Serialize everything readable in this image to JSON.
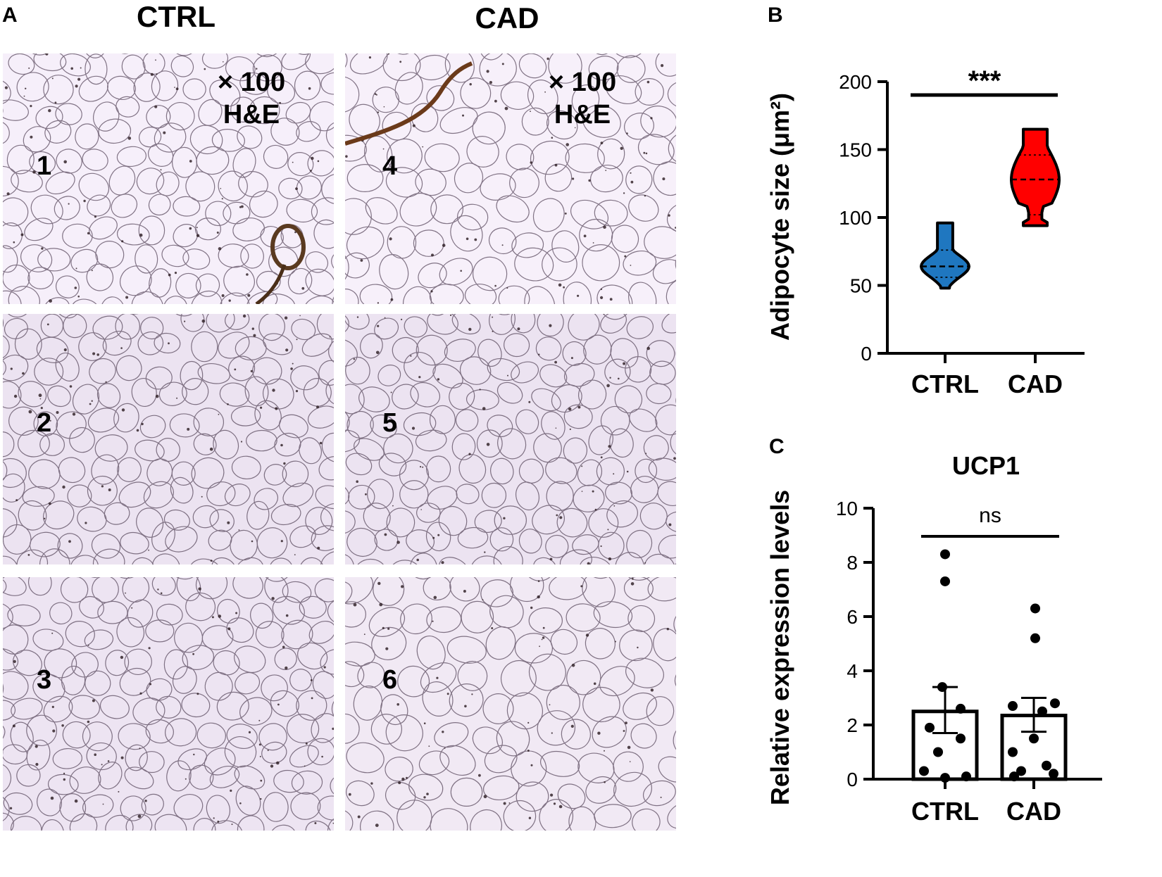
{
  "panel_a": {
    "letter": "A",
    "columns": [
      "CTRL",
      "CAD"
    ],
    "magnification": "× 100",
    "stain": "H&E",
    "images": [
      {
        "number": "1",
        "group": "CTRL",
        "tint": "#f6effa"
      },
      {
        "number": "2",
        "group": "CTRL",
        "tint": "#ece3f1"
      },
      {
        "number": "3",
        "group": "CTRL",
        "tint": "#ede4f2"
      },
      {
        "number": "4",
        "group": "CAD",
        "tint": "#f7f0fa"
      },
      {
        "number": "5",
        "group": "CAD",
        "tint": "#ece3f1"
      },
      {
        "number": "6",
        "group": "CAD",
        "tint": "#f1e9f4"
      }
    ]
  },
  "panel_b": {
    "letter": "B"
  },
  "panel_c": {
    "letter": "C"
  },
  "chart_data": [
    {
      "id": "B",
      "type": "violin",
      "title": "",
      "ylabel": "Adipocyte size (μm²)",
      "ylim": [
        0,
        200
      ],
      "yticks": [
        0,
        50,
        100,
        150,
        200
      ],
      "categories": [
        "CTRL",
        "CAD"
      ],
      "significance": "***",
      "series": [
        {
          "category": "CTRL",
          "color": "#1f77c0",
          "min": 48,
          "max": 96,
          "median": 64,
          "q1": 56,
          "q3": 76
        },
        {
          "category": "CAD",
          "color": "#ff0000",
          "min": 94,
          "max": 165,
          "median": 128,
          "q1": 102,
          "q3": 146
        }
      ]
    },
    {
      "id": "C",
      "type": "bar",
      "title": "UCP1",
      "ylabel": "Relative expression levels",
      "ylim": [
        0,
        10
      ],
      "yticks": [
        0,
        2,
        4,
        6,
        8,
        10
      ],
      "categories": [
        "CTRL",
        "CAD"
      ],
      "significance": "ns",
      "values": [
        2.5,
        2.35
      ],
      "error": [
        [
          1.7,
          3.4
        ],
        [
          1.75,
          3.0
        ]
      ],
      "points": [
        [
          8.3,
          7.3,
          3.4,
          2.6,
          1.9,
          1.5,
          1.0,
          0.3,
          0.1,
          0.05
        ],
        [
          6.3,
          5.2,
          2.8,
          2.7,
          2.5,
          1.5,
          1.0,
          0.5,
          0.3,
          0.2,
          0.1
        ]
      ]
    }
  ]
}
